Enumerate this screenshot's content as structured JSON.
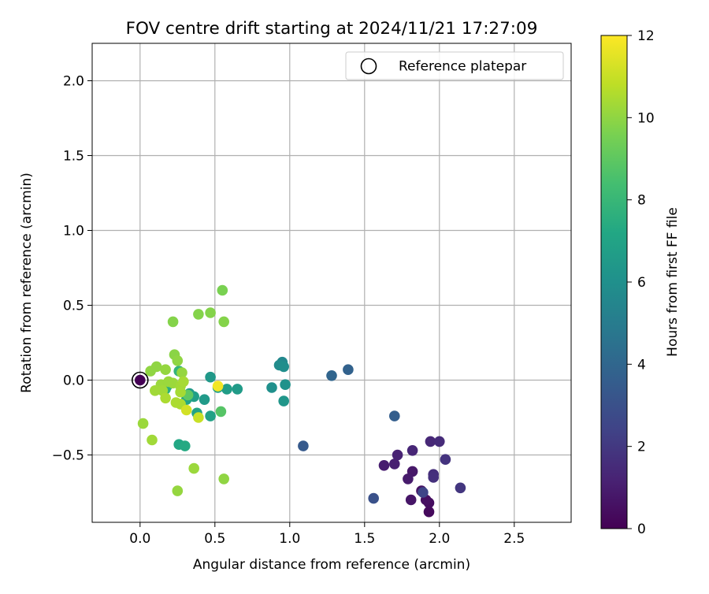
{
  "chart_data": {
    "type": "scatter",
    "title": "FOV centre drift starting at 2024/11/21 17:27:09",
    "xlabel": "Angular distance from reference (arcmin)",
    "ylabel": "Rotation from reference (arcmin)",
    "xlim": [
      -0.32,
      2.88
    ],
    "ylim": [
      -0.95,
      2.25
    ],
    "xticks": [
      0.0,
      0.5,
      1.0,
      1.5,
      2.0,
      2.5
    ],
    "xtick_labels": [
      "0.0",
      "0.5",
      "1.0",
      "1.5",
      "2.0",
      "2.5"
    ],
    "yticks": [
      -0.5,
      0.0,
      0.5,
      1.0,
      1.5,
      2.0
    ],
    "ytick_labels": [
      "−0.5",
      "0.0",
      "0.5",
      "1.0",
      "1.5",
      "2.0"
    ],
    "grid": true,
    "legend": {
      "position": "top-right",
      "label": "Reference platepar"
    },
    "reference_point": {
      "x": 0.0,
      "y": 0.0
    },
    "colorbar": {
      "label": "Hours from first FF file",
      "range": [
        0,
        12
      ],
      "ticks": [
        0,
        2,
        4,
        6,
        8,
        10,
        12
      ],
      "colormap": "viridis"
    },
    "points": [
      {
        "x": 0.0,
        "y": 0.0,
        "h": 0.0
      },
      {
        "x": 1.93,
        "y": -0.88,
        "h": 0.3
      },
      {
        "x": 1.93,
        "y": -0.82,
        "h": 0.4
      },
      {
        "x": 1.91,
        "y": -0.8,
        "h": 0.5
      },
      {
        "x": 1.88,
        "y": -0.74,
        "h": 0.6
      },
      {
        "x": 1.81,
        "y": -0.8,
        "h": 0.7
      },
      {
        "x": 1.82,
        "y": -0.61,
        "h": 0.8
      },
      {
        "x": 1.79,
        "y": -0.66,
        "h": 0.9
      },
      {
        "x": 1.63,
        "y": -0.57,
        "h": 1.0
      },
      {
        "x": 1.7,
        "y": -0.56,
        "h": 1.1
      },
      {
        "x": 1.72,
        "y": -0.5,
        "h": 1.2
      },
      {
        "x": 1.82,
        "y": -0.47,
        "h": 1.3
      },
      {
        "x": 1.94,
        "y": -0.41,
        "h": 1.4
      },
      {
        "x": 2.0,
        "y": -0.41,
        "h": 1.5
      },
      {
        "x": 1.96,
        "y": -0.63,
        "h": 1.6
      },
      {
        "x": 1.96,
        "y": -0.65,
        "h": 1.7
      },
      {
        "x": 2.04,
        "y": -0.53,
        "h": 1.8
      },
      {
        "x": 2.14,
        "y": -0.72,
        "h": 1.9
      },
      {
        "x": 1.89,
        "y": -0.75,
        "h": 2.5
      },
      {
        "x": 1.56,
        "y": -0.79,
        "h": 3.0
      },
      {
        "x": 1.09,
        "y": -0.44,
        "h": 3.4
      },
      {
        "x": 1.7,
        "y": -0.24,
        "h": 3.6
      },
      {
        "x": 1.39,
        "y": 0.07,
        "h": 3.8
      },
      {
        "x": 1.28,
        "y": 0.03,
        "h": 3.9
      },
      {
        "x": 0.95,
        "y": 0.12,
        "h": 5.6
      },
      {
        "x": 0.93,
        "y": 0.1,
        "h": 5.8
      },
      {
        "x": 0.96,
        "y": 0.09,
        "h": 5.9
      },
      {
        "x": 0.88,
        "y": -0.05,
        "h": 6.0
      },
      {
        "x": 0.97,
        "y": -0.03,
        "h": 6.1
      },
      {
        "x": 0.96,
        "y": -0.14,
        "h": 6.3
      },
      {
        "x": 0.47,
        "y": 0.02,
        "h": 6.4
      },
      {
        "x": 0.65,
        "y": -0.06,
        "h": 6.6
      },
      {
        "x": 0.58,
        "y": -0.06,
        "h": 6.7
      },
      {
        "x": 0.52,
        "y": -0.05,
        "h": 6.8
      },
      {
        "x": 0.43,
        "y": -0.13,
        "h": 6.5
      },
      {
        "x": 0.47,
        "y": -0.24,
        "h": 6.9
      },
      {
        "x": 0.38,
        "y": -0.22,
        "h": 7.0
      },
      {
        "x": 0.33,
        "y": -0.09,
        "h": 6.6
      },
      {
        "x": 0.36,
        "y": -0.11,
        "h": 6.8
      },
      {
        "x": 0.31,
        "y": -0.13,
        "h": 7.1
      },
      {
        "x": 0.26,
        "y": -0.43,
        "h": 7.2
      },
      {
        "x": 0.3,
        "y": -0.44,
        "h": 7.3
      },
      {
        "x": 0.18,
        "y": -0.04,
        "h": 7.4
      },
      {
        "x": 0.17,
        "y": -0.06,
        "h": 7.5
      },
      {
        "x": 0.26,
        "y": 0.06,
        "h": 7.8
      },
      {
        "x": 0.54,
        "y": -0.21,
        "h": 8.8
      },
      {
        "x": 0.32,
        "y": -0.1,
        "h": 9.0
      },
      {
        "x": 0.55,
        "y": 0.6,
        "h": 9.6
      },
      {
        "x": 0.22,
        "y": 0.39,
        "h": 9.8
      },
      {
        "x": 0.39,
        "y": 0.44,
        "h": 9.8
      },
      {
        "x": 0.47,
        "y": 0.45,
        "h": 9.8
      },
      {
        "x": 0.56,
        "y": 0.39,
        "h": 9.8
      },
      {
        "x": 0.23,
        "y": 0.17,
        "h": 9.9
      },
      {
        "x": 0.25,
        "y": 0.13,
        "h": 10.0
      },
      {
        "x": 0.11,
        "y": 0.09,
        "h": 10.0
      },
      {
        "x": 0.07,
        "y": 0.06,
        "h": 10.0
      },
      {
        "x": 0.17,
        "y": 0.07,
        "h": 10.1
      },
      {
        "x": 0.28,
        "y": 0.05,
        "h": 10.1
      },
      {
        "x": 0.14,
        "y": -0.03,
        "h": 10.2
      },
      {
        "x": 0.19,
        "y": -0.01,
        "h": 10.2
      },
      {
        "x": 0.22,
        "y": -0.02,
        "h": 10.2
      },
      {
        "x": 0.27,
        "y": -0.04,
        "h": 10.3
      },
      {
        "x": 0.1,
        "y": -0.07,
        "h": 10.3
      },
      {
        "x": 0.15,
        "y": -0.07,
        "h": 10.3
      },
      {
        "x": 0.27,
        "y": -0.08,
        "h": 10.4
      },
      {
        "x": 0.29,
        "y": -0.01,
        "h": 10.4
      },
      {
        "x": 0.17,
        "y": -0.12,
        "h": 10.5
      },
      {
        "x": 0.24,
        "y": -0.15,
        "h": 10.5
      },
      {
        "x": 0.27,
        "y": -0.16,
        "h": 10.5
      },
      {
        "x": 0.02,
        "y": -0.29,
        "h": 10.2
      },
      {
        "x": 0.08,
        "y": -0.4,
        "h": 10.3
      },
      {
        "x": 0.25,
        "y": -0.74,
        "h": 10.1
      },
      {
        "x": 0.36,
        "y": -0.59,
        "h": 10.2
      },
      {
        "x": 0.56,
        "y": -0.66,
        "h": 10.0
      },
      {
        "x": 0.31,
        "y": -0.2,
        "h": 11.2
      },
      {
        "x": 0.39,
        "y": -0.25,
        "h": 11.0
      },
      {
        "x": 0.52,
        "y": -0.04,
        "h": 11.8
      }
    ]
  }
}
